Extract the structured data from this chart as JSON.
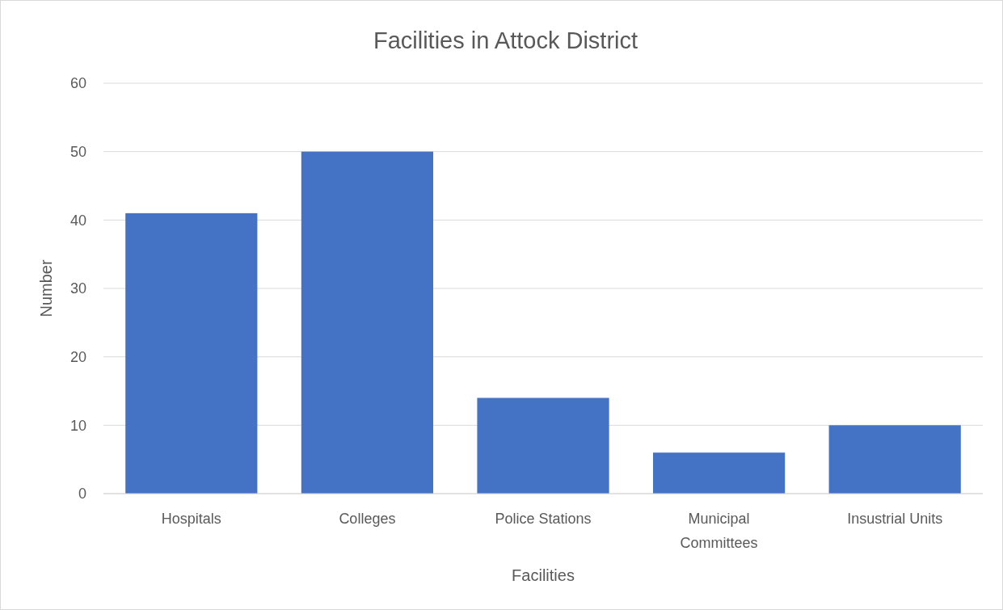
{
  "chart_data": {
    "type": "bar",
    "title": "Facilities in Attock District",
    "xlabel": "Facilities",
    "ylabel": "Number",
    "categories": [
      "Hospitals",
      "Colleges",
      "Police Stations",
      "Municipal Committees",
      "Insustrial Units"
    ],
    "values": [
      41,
      50,
      14,
      6,
      10
    ],
    "color": "#4472c4",
    "ylim": [
      0,
      60
    ],
    "yticks": [
      0,
      10,
      20,
      30,
      40,
      50,
      60
    ],
    "grid": "y"
  }
}
